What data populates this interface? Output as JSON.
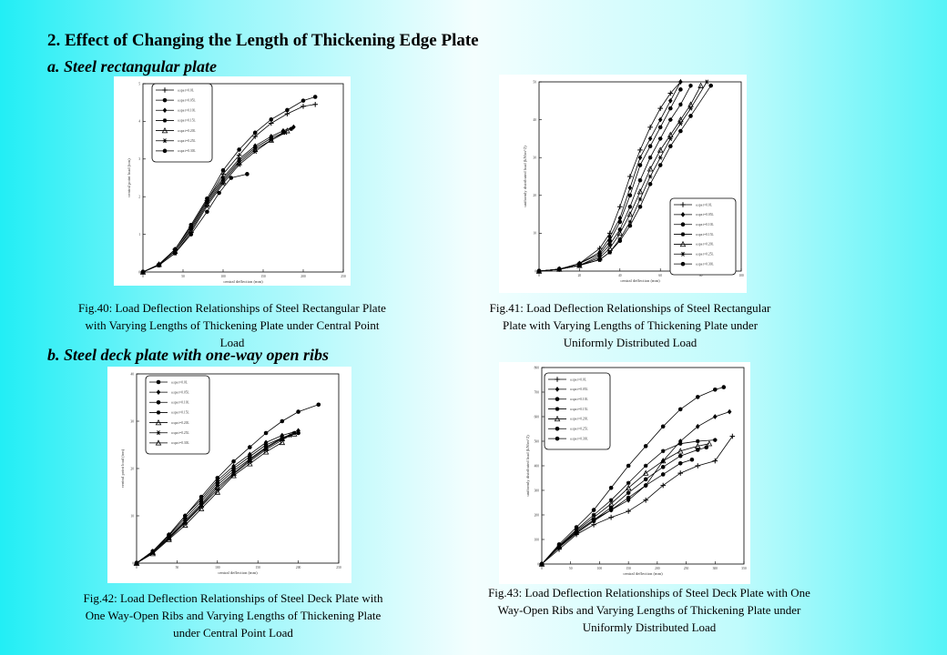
{
  "heading": "2. Effect of Changing the Length of Thickening Edge Plate",
  "section_a": "a. Steel rectangular plate",
  "section_b": "b. Steel deck plate with one-way open ribs",
  "chart_data": [
    {
      "id": "fig40",
      "type": "line",
      "caption": "Fig.40: Load Deflection Relationships of Steel Rectangular Plate with Varying Lengths of Thickening Plate under Central Point Load",
      "xlabel": "central deflection (mm)",
      "ylabel": "central point load (ton)",
      "xlim": [
        0,
        250
      ],
      "ylim": [
        0,
        5
      ],
      "xticks": [
        "0",
        "50",
        "100",
        "150",
        "200",
        "250"
      ],
      "yticks": [
        "0",
        "1",
        "2",
        "3",
        "4",
        "5"
      ],
      "legend_position": "top-left",
      "series": [
        {
          "name": "a.spa t=0.0L",
          "marker": "plus",
          "x": [
            0,
            20,
            40,
            60,
            80,
            100,
            120,
            140,
            160,
            180,
            200,
            215
          ],
          "y": [
            0,
            0.2,
            0.6,
            1.2,
            1.9,
            2.6,
            3.1,
            3.6,
            3.95,
            4.2,
            4.4,
            4.45
          ]
        },
        {
          "name": "a.spa t=0.05L",
          "marker": "circle",
          "x": [
            0,
            20,
            40,
            60,
            80,
            100,
            120,
            140,
            160,
            180,
            200,
            215
          ],
          "y": [
            0,
            0.2,
            0.6,
            1.25,
            1.95,
            2.7,
            3.25,
            3.7,
            4.05,
            4.3,
            4.55,
            4.65
          ]
        },
        {
          "name": "a.spa t=0.10L",
          "marker": "diamond",
          "x": [
            0,
            20,
            40,
            60,
            80,
            100,
            120,
            140,
            160,
            175,
            188
          ],
          "y": [
            0,
            0.2,
            0.6,
            1.2,
            1.9,
            2.5,
            3.0,
            3.35,
            3.6,
            3.75,
            3.85
          ]
        },
        {
          "name": "a.spa t=0.15L",
          "marker": "star",
          "x": [
            0,
            20,
            40,
            60,
            80,
            100,
            120,
            140,
            160,
            175,
            185
          ],
          "y": [
            0,
            0.2,
            0.55,
            1.15,
            1.85,
            2.45,
            2.95,
            3.3,
            3.55,
            3.7,
            3.8
          ]
        },
        {
          "name": "a.spa t=0.20L",
          "marker": "triangle",
          "x": [
            0,
            20,
            40,
            60,
            80,
            100,
            120,
            140,
            160,
            180
          ],
          "y": [
            0,
            0.2,
            0.55,
            1.1,
            1.8,
            2.4,
            2.9,
            3.25,
            3.5,
            3.75
          ]
        },
        {
          "name": "a.spa t=0.25L",
          "marker": "asterisk",
          "x": [
            0,
            20,
            40,
            60,
            80,
            100,
            120,
            140,
            160,
            178
          ],
          "y": [
            0,
            0.18,
            0.5,
            1.05,
            1.75,
            2.35,
            2.85,
            3.2,
            3.5,
            3.7
          ]
        },
        {
          "name": "a.spa t=0.30L",
          "marker": "circle",
          "x": [
            0,
            20,
            40,
            60,
            80,
            95,
            110,
            130
          ],
          "y": [
            0,
            0.18,
            0.5,
            1.0,
            1.6,
            2.1,
            2.5,
            2.6
          ]
        }
      ]
    },
    {
      "id": "fig41",
      "type": "line",
      "caption": "Fig.41: Load Deflection Relationships of Steel Rectangular Plate with Varying Lengths of Thickening Plate under Uniformly Distributed Load",
      "xlabel": "central deflection (mm)",
      "ylabel": "uniformly distributed load (kN/m^2)",
      "xlim": [
        0,
        100
      ],
      "ylim": [
        0,
        50
      ],
      "xticks": [
        "0",
        "20",
        "40",
        "60",
        "80",
        "100"
      ],
      "yticks": [
        "0",
        "10",
        "20",
        "30",
        "40",
        "50"
      ],
      "legend_position": "bottom-right",
      "series": [
        {
          "name": "a.spa t=0.0L",
          "marker": "plus",
          "x": [
            0,
            10,
            20,
            30,
            35,
            40,
            45,
            50,
            55,
            60,
            65,
            70
          ],
          "y": [
            0,
            0.5,
            2,
            6,
            10,
            17,
            25,
            32,
            38,
            43,
            47,
            50
          ]
        },
        {
          "name": "a.spa t=0.05L",
          "marker": "diamond",
          "x": [
            0,
            10,
            20,
            30,
            35,
            40,
            45,
            50,
            55,
            60,
            65,
            70
          ],
          "y": [
            0,
            0.5,
            2,
            5,
            9,
            14,
            22,
            30,
            35,
            40,
            45,
            50
          ]
        },
        {
          "name": "a.spa t=0.10L",
          "marker": "circle",
          "x": [
            0,
            10,
            20,
            30,
            35,
            40,
            45,
            50,
            55,
            60,
            65,
            70
          ],
          "y": [
            0,
            0.5,
            2,
            4.5,
            8,
            13,
            20,
            28,
            33,
            38,
            43,
            48
          ]
        },
        {
          "name": "a.spa t=0.15L",
          "marker": "star",
          "x": [
            0,
            10,
            20,
            30,
            35,
            40,
            45,
            50,
            55,
            60,
            65,
            70,
            75
          ],
          "y": [
            0,
            0.5,
            1.5,
            4,
            7,
            11,
            17,
            24,
            30,
            35,
            40,
            44,
            49
          ]
        },
        {
          "name": "a.spa t=0.20L",
          "marker": "triangle",
          "x": [
            0,
            10,
            20,
            30,
            35,
            40,
            45,
            50,
            55,
            60,
            65,
            70,
            75,
            80
          ],
          "y": [
            0,
            0.5,
            1.5,
            3.5,
            6,
            10,
            15,
            21,
            27,
            32,
            36,
            40,
            44,
            49
          ]
        },
        {
          "name": "a.spa t=0.25L",
          "marker": "asterisk",
          "x": [
            0,
            10,
            20,
            30,
            35,
            40,
            45,
            50,
            55,
            60,
            65,
            70,
            75,
            83
          ],
          "y": [
            0,
            0.5,
            1.5,
            3,
            5,
            8.5,
            13,
            19,
            25,
            30,
            35,
            39,
            43,
            50
          ]
        },
        {
          "name": "a.spa t=0.30L",
          "marker": "circle",
          "x": [
            0,
            10,
            20,
            30,
            35,
            40,
            45,
            50,
            55,
            60,
            65,
            70,
            75,
            85
          ],
          "y": [
            0,
            0.5,
            1.5,
            3,
            5,
            8,
            12,
            17,
            23,
            28,
            33,
            37,
            41,
            49
          ]
        }
      ]
    },
    {
      "id": "fig42",
      "type": "line",
      "caption": "Fig.42: Load Deflection Relationships of Steel Deck Plate with One Way-Open Ribs and Varying Lengths of Thickening Plate under Central Point Load",
      "xlabel": "central deflection (mm)",
      "ylabel": "central point load (ton)",
      "xlim": [
        0,
        250
      ],
      "ylim": [
        0,
        40
      ],
      "xticks": [
        "0",
        "50",
        "100",
        "150",
        "200",
        "250"
      ],
      "yticks": [
        "0",
        "10",
        "20",
        "30",
        "40"
      ],
      "legend_position": "top-left",
      "series": [
        {
          "name": "a.spa t=0.0L",
          "marker": "circle",
          "x": [
            0,
            20,
            40,
            60,
            80,
            100,
            120,
            140,
            160,
            180,
            200,
            225
          ],
          "y": [
            0,
            2.5,
            6,
            10,
            14,
            18,
            21.5,
            24.5,
            27.5,
            30,
            32,
            33.5
          ]
        },
        {
          "name": "a.spa t=0.05L",
          "marker": "diamond",
          "x": [
            0,
            20,
            40,
            60,
            80,
            100,
            120,
            140,
            160,
            180,
            200
          ],
          "y": [
            0,
            2.5,
            6,
            10,
            13.5,
            17.5,
            20.5,
            23,
            25.5,
            27,
            28
          ]
        },
        {
          "name": "a.spa t=0.10L",
          "marker": "circle",
          "x": [
            0,
            20,
            40,
            60,
            80,
            100,
            120,
            140,
            160,
            180,
            200
          ],
          "y": [
            0,
            2.5,
            5.8,
            9.5,
            13,
            17,
            20,
            22.5,
            25,
            26.5,
            27.5
          ]
        },
        {
          "name": "a.spa t=0.15L",
          "marker": "star",
          "x": [
            0,
            20,
            40,
            60,
            80,
            100,
            120,
            140,
            160,
            180,
            195
          ],
          "y": [
            0,
            2.5,
            5.5,
            9,
            12.5,
            16.5,
            19.5,
            22,
            24.5,
            26.5,
            27.5
          ]
        },
        {
          "name": "a.spa t=0.20L",
          "marker": "triangle",
          "x": [
            0,
            20,
            40,
            60,
            80,
            100,
            120,
            140,
            160,
            180,
            195
          ],
          "y": [
            0,
            2.3,
            5.3,
            8.7,
            12.2,
            16,
            19,
            21.8,
            24.3,
            26.3,
            27.3
          ]
        },
        {
          "name": "a.spa t=0.25L",
          "marker": "asterisk",
          "x": [
            0,
            20,
            40,
            60,
            80,
            100,
            120,
            140,
            160,
            180,
            190
          ],
          "y": [
            0,
            2.2,
            5.2,
            8.5,
            12,
            15.5,
            18.8,
            21.5,
            24,
            26,
            27
          ]
        },
        {
          "name": "a.spa t=0.30L",
          "marker": "triangle",
          "x": [
            0,
            20,
            40,
            60,
            80,
            100,
            120,
            140,
            160,
            180
          ],
          "y": [
            0,
            2,
            5,
            8,
            11.5,
            15,
            18.5,
            21,
            23.5,
            25.5
          ]
        }
      ]
    },
    {
      "id": "fig43",
      "type": "line",
      "caption": "Fig.43: Load Deflection Relationships of Steel Deck Plate with One Way-Open Ribs and Varying Lengths of Thickening Plate under Uniformly Distributed Load",
      "xlabel": "central deflection (mm)",
      "ylabel": "uniformly distributed load (kN/m^2)",
      "xlim": [
        0,
        350
      ],
      "ylim": [
        0,
        800
      ],
      "xticks": [
        "0",
        "50",
        "100",
        "150",
        "200",
        "250",
        "300",
        "350"
      ],
      "yticks": [
        "0",
        "100",
        "200",
        "300",
        "400",
        "500",
        "600",
        "700",
        "800"
      ],
      "legend_position": "top-left",
      "series": [
        {
          "name": "a.spa t=0.0L",
          "marker": "plus",
          "x": [
            0,
            30,
            60,
            90,
            120,
            150,
            180,
            210,
            240,
            270,
            300,
            330
          ],
          "y": [
            0,
            60,
            120,
            160,
            190,
            215,
            260,
            320,
            370,
            400,
            420,
            520
          ]
        },
        {
          "name": "a.spa t=0.05L",
          "marker": "diamond",
          "x": [
            0,
            30,
            60,
            90,
            120,
            150,
            180,
            210,
            240,
            270,
            300,
            325
          ],
          "y": [
            0,
            70,
            130,
            180,
            220,
            260,
            320,
            420,
            500,
            560,
            600,
            620
          ]
        },
        {
          "name": "a.spa t=0.10L",
          "marker": "circle",
          "x": [
            0,
            30,
            60,
            90,
            120,
            150,
            180,
            210,
            240,
            270,
            300,
            315
          ],
          "y": [
            0,
            80,
            150,
            220,
            310,
            400,
            480,
            560,
            630,
            680,
            710,
            720
          ]
        },
        {
          "name": "a.spa t=0.15L",
          "marker": "star",
          "x": [
            0,
            30,
            60,
            90,
            120,
            150,
            180,
            210,
            240,
            270,
            300
          ],
          "y": [
            0,
            75,
            140,
            200,
            260,
            330,
            400,
            460,
            490,
            500,
            505
          ]
        },
        {
          "name": "a.spa t=0.20L",
          "marker": "triangle",
          "x": [
            0,
            30,
            60,
            90,
            120,
            150,
            180,
            210,
            240,
            270,
            290
          ],
          "y": [
            0,
            72,
            135,
            190,
            245,
            310,
            370,
            420,
            460,
            480,
            490
          ]
        },
        {
          "name": "a.spa t=0.25L",
          "marker": "circle",
          "x": [
            0,
            30,
            60,
            90,
            120,
            150,
            180,
            210,
            240,
            270,
            285
          ],
          "y": [
            0,
            70,
            130,
            180,
            230,
            290,
            345,
            395,
            440,
            465,
            475
          ]
        },
        {
          "name": "a.spa t=0.30L",
          "marker": "circle",
          "x": [
            0,
            30,
            60,
            90,
            120,
            150,
            180,
            210,
            240,
            260
          ],
          "y": [
            0,
            68,
            125,
            175,
            220,
            270,
            320,
            365,
            410,
            425
          ]
        }
      ]
    }
  ]
}
